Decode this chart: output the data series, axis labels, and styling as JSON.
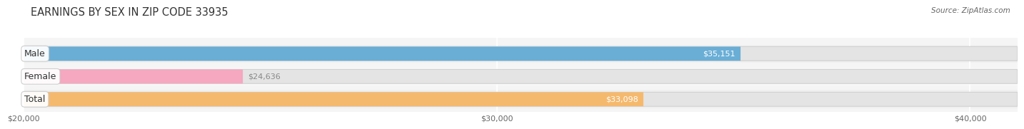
{
  "title": "EARNINGS BY SEX IN ZIP CODE 33935",
  "source": "Source: ZipAtlas.com",
  "categories": [
    "Male",
    "Female",
    "Total"
  ],
  "values": [
    35151,
    24636,
    33098
  ],
  "bar_colors": [
    "#6aaed6",
    "#f5a8c0",
    "#f5b96e"
  ],
  "bar_bg_color": "#e8e8e8",
  "label_texts": [
    "$35,151",
    "$24,636",
    "$33,098"
  ],
  "label_colors": [
    "white",
    "#888888",
    "white"
  ],
  "xmin": 20000,
  "xmax": 41000,
  "xticks": [
    20000,
    30000,
    40000
  ],
  "xticklabels": [
    "$20,000",
    "$30,000",
    "$40,000"
  ],
  "background_color": "#ffffff",
  "plot_bg_color": "#f5f5f5",
  "title_fontsize": 10.5,
  "label_fontsize": 8,
  "category_fontsize": 9
}
